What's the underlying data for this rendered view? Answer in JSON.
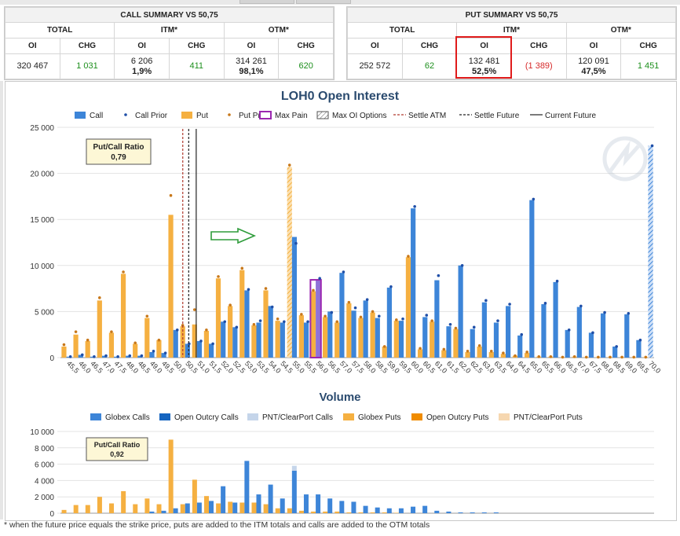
{
  "call_summary": {
    "title": "CALL SUMMARY VS 50,75",
    "groups": [
      "TOTAL",
      "ITM*",
      "OTM*"
    ],
    "headers": [
      "OI",
      "CHG",
      "OI",
      "CHG",
      "OI",
      "CHG"
    ],
    "total_oi": "320 467",
    "total_chg": "1 031",
    "itm_oi": "6 206",
    "itm_pct": "1,9%",
    "itm_chg": "411",
    "otm_oi": "314 261",
    "otm_pct": "98,1%",
    "otm_chg": "620"
  },
  "put_summary": {
    "title": "PUT SUMMARY VS 50,75",
    "groups": [
      "TOTAL",
      "ITM*",
      "OTM*"
    ],
    "headers": [
      "OI",
      "CHG",
      "OI",
      "CHG",
      "OI",
      "CHG"
    ],
    "total_oi": "252 572",
    "total_chg": "62",
    "itm_oi": "132 481",
    "itm_pct": "52,5%",
    "itm_chg": "(1 389)",
    "otm_oi": "120 091",
    "otm_pct": "47,5%",
    "otm_chg": "1 451"
  },
  "colors": {
    "call": "#3d85d8",
    "put": "#f5b041",
    "prior_call": "#1f4fa8",
    "prior_put": "#c8781a",
    "max_pain": "#9b27b0",
    "settle_atm": "#b03a2e",
    "oc_calls": "#1565c0",
    "pnt_calls": "#c5d5ea",
    "oc_puts": "#f08c00",
    "pnt_puts": "#f6d7b0",
    "highlight": "#e01b1b",
    "arrow": "#2e9c3a",
    "positive": "#1d8f1d",
    "negative": "#d62a2a"
  },
  "footer_note": "* when the future price equals the strike price, puts are added to the ITM totals and calls are added to the OTM totals",
  "chart_data": [
    {
      "type": "bar",
      "title": "LOH0 Open Interest",
      "legend": [
        "Call",
        "Call Prior",
        "Put",
        "Put Prior",
        "Max Pain",
        "Max OI Options",
        "Settle ATM",
        "Settle Future",
        "Current Future"
      ],
      "legend_position": "top",
      "ratio_label": "Put/Call Ratio",
      "ratio_value": "0,79",
      "ylim": [
        0,
        25000
      ],
      "yticks": [
        "0",
        "5 000",
        "10 000",
        "15 000",
        "20 000",
        "25 000"
      ],
      "ytick_values": [
        0,
        5000,
        10000,
        15000,
        20000,
        25000
      ],
      "grid": true,
      "categories": [
        "45,5",
        "46,0",
        "46,5",
        "47,0",
        "47,5",
        "48,0",
        "48,5",
        "49,0",
        "49,5",
        "50,0",
        "50,5",
        "51,0",
        "51,5",
        "52,0",
        "52,5",
        "53,0",
        "53,5",
        "54,0",
        "54,5",
        "55,0",
        "55,5",
        "56,0",
        "56,5",
        "57,0",
        "57,5",
        "58,0",
        "58,5",
        "59,0",
        "59,5",
        "60,0",
        "60,5",
        "61,0",
        "61,5",
        "62,0",
        "62,5",
        "63,0",
        "63,5",
        "64,0",
        "64,5",
        "65,0",
        "65,5",
        "66,0",
        "66,5",
        "67,0",
        "67,5",
        "68,0",
        "68,5",
        "69,0",
        "69,5",
        "70,0"
      ],
      "series": [
        {
          "name": "Call",
          "values": [
            100,
            300,
            100,
            200,
            100,
            200,
            200,
            600,
            500,
            3000,
            1500,
            1800,
            1500,
            3900,
            3300,
            7300,
            3800,
            5600,
            3800,
            13100,
            3800,
            8400,
            5000,
            9200,
            5100,
            6200,
            4300,
            7600,
            4000,
            16200,
            4400,
            8400,
            3400,
            10000,
            3100,
            6000,
            3800,
            5600,
            2400,
            17100,
            5800,
            8200,
            3000,
            5500,
            2700,
            4800,
            1200,
            4700,
            1900,
            23000
          ]
        },
        {
          "name": "Call Prior",
          "values": [
            100,
            300,
            100,
            200,
            100,
            200,
            200,
            700,
            500,
            3000,
            1500,
            1800,
            1500,
            3900,
            3300,
            7400,
            4000,
            5500,
            3900,
            12400,
            3900,
            8600,
            4900,
            9300,
            5400,
            6300,
            4500,
            7700,
            4200,
            16400,
            4600,
            8900,
            3600,
            10000,
            3300,
            6200,
            4000,
            5800,
            2500,
            17200,
            5900,
            8300,
            3000,
            5600,
            2700,
            4900,
            1200,
            4800,
            1900,
            23000
          ]
        },
        {
          "name": "Put",
          "values": [
            1200,
            2500,
            1800,
            6200,
            2700,
            9100,
            1500,
            4300,
            1900,
            15500,
            3400,
            3600,
            2900,
            8600,
            5600,
            9500,
            3500,
            7300,
            4000,
            20700,
            4600,
            7200,
            4400,
            3800,
            5900,
            4300,
            4900,
            1200,
            4000,
            10900,
            900,
            3900,
            800,
            3100,
            600,
            1200,
            600,
            400,
            200,
            500,
            100,
            100,
            50,
            100,
            50,
            50,
            50,
            50,
            50,
            50
          ]
        },
        {
          "name": "Put Prior",
          "values": [
            1400,
            2800,
            1900,
            6500,
            2800,
            9300,
            1600,
            4500,
            1900,
            17600,
            3500,
            5200,
            3000,
            8800,
            5700,
            9700,
            3600,
            7500,
            4200,
            20900,
            4700,
            7300,
            4500,
            3900,
            6000,
            4400,
            5000,
            1200,
            4100,
            11000,
            1000,
            4000,
            900,
            3200,
            700,
            1300,
            700,
            500,
            200,
            600,
            100,
            100,
            50,
            100,
            50,
            50,
            50,
            50,
            50,
            50
          ]
        }
      ],
      "max_pain": "56,0",
      "max_oi_options": [
        "55,0",
        "70,0"
      ],
      "settle_atm": 50.5,
      "settle_future": 50.75,
      "current_future": 51.0
    },
    {
      "type": "bar",
      "title": "Volume",
      "legend": [
        "Globex Calls",
        "Open Outcry Calls",
        "PNT/ClearPort Calls",
        "Globex Puts",
        "Open Outcry Puts",
        "PNT/ClearPort Puts"
      ],
      "legend_position": "top",
      "ratio_label": "Put/Call Ratio",
      "ratio_value": "0,92",
      "ylim": [
        0,
        10000
      ],
      "yticks": [
        "0",
        "2 000",
        "4 000",
        "6 000",
        "8 000",
        "10 000"
      ],
      "ytick_values": [
        0,
        2000,
        4000,
        6000,
        8000,
        10000
      ],
      "grid": true,
      "categories": [
        "45,5",
        "46,0",
        "46,5",
        "47,0",
        "47,5",
        "48,0",
        "48,5",
        "49,0",
        "49,5",
        "50,0",
        "50,5",
        "51,0",
        "51,5",
        "52,0",
        "52,5",
        "53,0",
        "53,5",
        "54,0",
        "54,5",
        "55,0",
        "55,5",
        "56,0",
        "56,5",
        "57,0",
        "57,5",
        "58,0",
        "58,5",
        "59,0",
        "59,5",
        "60,0",
        "60,5",
        "61,0",
        "61,5",
        "62,0",
        "62,5",
        "63,0",
        "63,5",
        "64,0",
        "64,5",
        "65,0",
        "65,5",
        "66,0",
        "66,5",
        "67,0",
        "67,5",
        "68,0",
        "68,5",
        "69,0",
        "69,5",
        "70,0"
      ],
      "series": [
        {
          "name": "Globex Calls",
          "values": [
            0,
            0,
            0,
            0,
            0,
            0,
            0,
            200,
            300,
            600,
            1200,
            1300,
            1500,
            3300,
            1300,
            6400,
            2300,
            3500,
            1800,
            5200,
            2300,
            2300,
            1800,
            1500,
            1400,
            900,
            700,
            600,
            600,
            800,
            900,
            300,
            200,
            100,
            100,
            100,
            100,
            0,
            0,
            0,
            0,
            0,
            0,
            0,
            0,
            0,
            0,
            0,
            0,
            0
          ]
        },
        {
          "name": "PNT/ClearPort Calls",
          "values": [
            0,
            0,
            0,
            0,
            0,
            0,
            0,
            0,
            0,
            0,
            0,
            0,
            0,
            0,
            0,
            0,
            0,
            0,
            0,
            600,
            0,
            0,
            0,
            0,
            0,
            0,
            0,
            0,
            0,
            0,
            0,
            0,
            0,
            0,
            0,
            0,
            0,
            0,
            0,
            0,
            0,
            0,
            0,
            0,
            0,
            0,
            0,
            0,
            0,
            0
          ]
        },
        {
          "name": "Globex Puts",
          "values": [
            400,
            1000,
            1000,
            2000,
            1200,
            2700,
            1100,
            1800,
            1100,
            9000,
            1100,
            4100,
            2100,
            1200,
            1400,
            1300,
            1300,
            1100,
            600,
            600,
            300,
            200,
            200,
            200,
            100,
            100,
            100,
            100,
            50,
            0,
            0,
            0,
            0,
            0,
            0,
            0,
            0,
            0,
            0,
            0,
            0,
            0,
            0,
            0,
            0,
            0,
            0,
            0,
            0,
            0
          ]
        }
      ]
    }
  ]
}
